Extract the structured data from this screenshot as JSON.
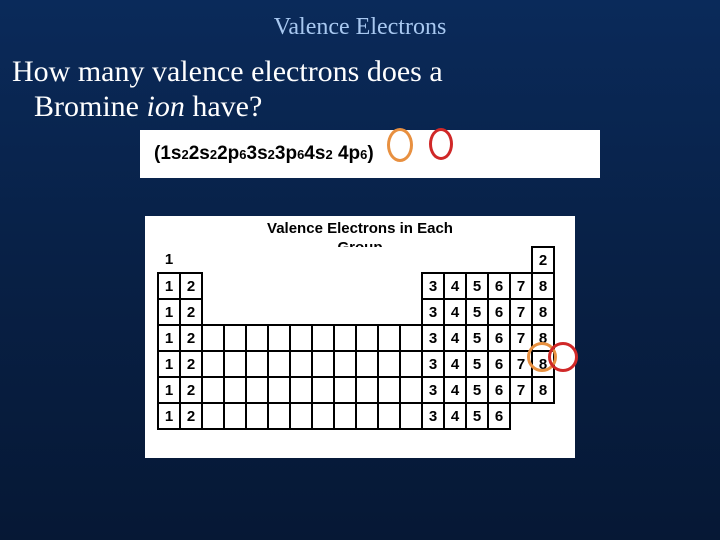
{
  "title": "Valence Electrons",
  "question_line1": "How many valence electrons does a",
  "question_line2_a": "Bromine ",
  "question_line2_b": "ion",
  "question_line2_c": " have?",
  "config": {
    "open": "(",
    "t1": "1s",
    "e1": "2",
    "t2": " 2s",
    "e2": "2",
    "t3": " 2p",
    "e3": "6",
    "t4": " 3s",
    "e4": "2",
    "t5": " 3p",
    "e5": "6",
    "t6": "4s",
    "e6": "2",
    "t7": "4p",
    "e7": "6",
    "close": ")"
  },
  "table_title_l1": "Valence Electrons in Each",
  "table_title_l2": "Group",
  "grid": {
    "rows": [
      [
        "1",
        "",
        "",
        "",
        "",
        "",
        "",
        "",
        "",
        "",
        "",
        "",
        "",
        "",
        "",
        "",
        "",
        "2"
      ],
      [
        "1",
        "2",
        "",
        "",
        "",
        "",
        "",
        "",
        "",
        "",
        "",
        "",
        "3",
        "4",
        "5",
        "6",
        "7",
        "8"
      ],
      [
        "1",
        "2",
        "",
        "",
        "",
        "",
        "",
        "",
        "",
        "",
        "",
        "",
        "3",
        "4",
        "5",
        "6",
        "7",
        "8"
      ],
      [
        "1",
        "2",
        "",
        "",
        "",
        "",
        "",
        "",
        "",
        "",
        "",
        "",
        "3",
        "4",
        "5",
        "6",
        "7",
        "8"
      ],
      [
        "1",
        "2",
        "",
        "",
        "",
        "",
        "",
        "",
        "",
        "",
        "",
        "",
        "3",
        "4",
        "5",
        "6",
        "7",
        "8"
      ],
      [
        "1",
        "2",
        "",
        "",
        "",
        "",
        "",
        "",
        "",
        "",
        "",
        "",
        "3",
        "4",
        "5",
        "6",
        "7",
        "8"
      ],
      [
        "1",
        "2",
        "",
        "",
        "",
        "",
        "",
        "",
        "",
        "",
        "",
        "",
        "3",
        "4",
        "5",
        "6",
        "",
        ""
      ]
    ],
    "cells_with_border": [
      [
        0,
        17
      ],
      [
        1,
        0
      ],
      [
        1,
        1
      ],
      [
        1,
        12
      ],
      [
        1,
        13
      ],
      [
        1,
        14
      ],
      [
        1,
        15
      ],
      [
        1,
        16
      ],
      [
        1,
        17
      ],
      [
        2,
        0
      ],
      [
        2,
        1
      ],
      [
        2,
        12
      ],
      [
        2,
        13
      ],
      [
        2,
        14
      ],
      [
        2,
        15
      ],
      [
        2,
        16
      ],
      [
        2,
        17
      ],
      [
        3,
        0
      ],
      [
        3,
        1
      ],
      [
        3,
        2
      ],
      [
        3,
        3
      ],
      [
        3,
        4
      ],
      [
        3,
        5
      ],
      [
        3,
        6
      ],
      [
        3,
        7
      ],
      [
        3,
        8
      ],
      [
        3,
        9
      ],
      [
        3,
        10
      ],
      [
        3,
        11
      ],
      [
        3,
        12
      ],
      [
        3,
        13
      ],
      [
        3,
        14
      ],
      [
        3,
        15
      ],
      [
        3,
        16
      ],
      [
        3,
        17
      ],
      [
        4,
        0
      ],
      [
        4,
        1
      ],
      [
        4,
        2
      ],
      [
        4,
        3
      ],
      [
        4,
        4
      ],
      [
        4,
        5
      ],
      [
        4,
        6
      ],
      [
        4,
        7
      ],
      [
        4,
        8
      ],
      [
        4,
        9
      ],
      [
        4,
        10
      ],
      [
        4,
        11
      ],
      [
        4,
        12
      ],
      [
        4,
        13
      ],
      [
        4,
        14
      ],
      [
        4,
        15
      ],
      [
        4,
        16
      ],
      [
        4,
        17
      ],
      [
        5,
        0
      ],
      [
        5,
        1
      ],
      [
        5,
        2
      ],
      [
        5,
        3
      ],
      [
        5,
        4
      ],
      [
        5,
        5
      ],
      [
        5,
        6
      ],
      [
        5,
        7
      ],
      [
        5,
        8
      ],
      [
        5,
        9
      ],
      [
        5,
        10
      ],
      [
        5,
        11
      ],
      [
        5,
        12
      ],
      [
        5,
        13
      ],
      [
        5,
        14
      ],
      [
        5,
        15
      ],
      [
        5,
        16
      ],
      [
        5,
        17
      ],
      [
        6,
        0
      ],
      [
        6,
        1
      ],
      [
        6,
        2
      ],
      [
        6,
        3
      ],
      [
        6,
        4
      ],
      [
        6,
        5
      ],
      [
        6,
        6
      ],
      [
        6,
        7
      ],
      [
        6,
        8
      ],
      [
        6,
        9
      ],
      [
        6,
        10
      ],
      [
        6,
        11
      ],
      [
        6,
        12
      ],
      [
        6,
        13
      ],
      [
        6,
        14
      ],
      [
        6,
        15
      ]
    ],
    "row0_col0_noborder_text": "1"
  }
}
